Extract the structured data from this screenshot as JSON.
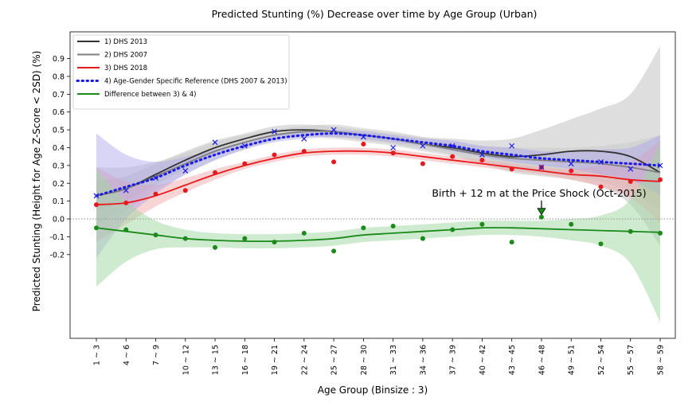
{
  "chart_data": {
    "type": "line",
    "title": "Predicted Stunting (%) Decrease over time by Age Group (Urban)",
    "xlabel": "Age Group (Binsize : 3)",
    "ylabel": "Predicted Stunting (Height for Age Z-Score < 2SD) (%)",
    "categories": [
      "1 ~ 3",
      "4 ~ 6",
      "7 ~ 9",
      "10 ~ 12",
      "13 ~ 15",
      "16 ~ 18",
      "19 ~ 21",
      "22 ~ 24",
      "25 ~ 27",
      "28 ~ 30",
      "31 ~ 33",
      "34 ~ 36",
      "37 ~ 39",
      "40 ~ 42",
      "43 ~ 45",
      "46 ~ 48",
      "49 ~ 51",
      "52 ~ 54",
      "55 ~ 57",
      "58 ~ 59"
    ],
    "yticks": [
      "-0.2",
      "-0.1",
      "0.0",
      "0.1",
      "0.2",
      "0.3",
      "0.4",
      "0.5",
      "0.6",
      "0.7",
      "0.8",
      "0.9"
    ],
    "ylim": [
      -0.67,
      1.05
    ],
    "series": [
      {
        "name": "1) DHS 2013",
        "color": "#333333",
        "style": "solid",
        "curve": [
          0.13,
          0.17,
          0.25,
          0.33,
          0.4,
          0.45,
          0.49,
          0.5,
          0.49,
          0.47,
          0.45,
          0.42,
          0.4,
          0.37,
          0.35,
          0.36,
          0.38,
          0.38,
          0.35,
          0.26
        ],
        "band_lo": [
          0.05,
          0.1,
          0.19,
          0.28,
          0.36,
          0.42,
          0.46,
          0.47,
          0.46,
          0.44,
          0.42,
          0.39,
          0.36,
          0.31,
          0.26,
          0.24,
          0.22,
          0.18,
          0.08,
          -0.15
        ],
        "band_hi": [
          0.21,
          0.24,
          0.31,
          0.38,
          0.44,
          0.48,
          0.52,
          0.53,
          0.52,
          0.5,
          0.48,
          0.46,
          0.45,
          0.44,
          0.45,
          0.5,
          0.56,
          0.62,
          0.7,
          0.97
        ]
      },
      {
        "name": "2) DHS 2007",
        "color": "#7f7f7f",
        "style": "solid",
        "curve": [
          0.13,
          0.17,
          0.24,
          0.31,
          0.38,
          0.43,
          0.47,
          0.49,
          0.49,
          0.47,
          0.45,
          0.42,
          0.39,
          0.36,
          0.34,
          0.33,
          0.32,
          0.31,
          0.29,
          0.26
        ],
        "band_lo": [
          -0.03,
          0.05,
          0.16,
          0.25,
          0.33,
          0.39,
          0.44,
          0.46,
          0.45,
          0.43,
          0.41,
          0.38,
          0.35,
          0.31,
          0.28,
          0.26,
          0.24,
          0.21,
          0.15,
          0.05
        ],
        "band_hi": [
          0.29,
          0.29,
          0.32,
          0.37,
          0.43,
          0.47,
          0.5,
          0.52,
          0.53,
          0.51,
          0.49,
          0.46,
          0.43,
          0.41,
          0.4,
          0.4,
          0.4,
          0.41,
          0.43,
          0.47
        ]
      },
      {
        "name": "3) DHS 2018",
        "color": "#e8191c",
        "style": "solid",
        "curve": [
          0.08,
          0.09,
          0.13,
          0.19,
          0.25,
          0.3,
          0.34,
          0.37,
          0.38,
          0.38,
          0.37,
          0.35,
          0.33,
          0.31,
          0.29,
          0.27,
          0.25,
          0.24,
          0.22,
          0.21
        ],
        "band_lo": [
          -0.13,
          -0.03,
          0.07,
          0.15,
          0.22,
          0.28,
          0.32,
          0.35,
          0.36,
          0.36,
          0.35,
          0.33,
          0.31,
          0.29,
          0.27,
          0.25,
          0.22,
          0.18,
          0.12,
          -0.02
        ],
        "band_hi": [
          0.29,
          0.21,
          0.19,
          0.23,
          0.28,
          0.32,
          0.36,
          0.39,
          0.4,
          0.4,
          0.39,
          0.37,
          0.35,
          0.33,
          0.31,
          0.29,
          0.28,
          0.3,
          0.32,
          0.44
        ],
        "points": [
          0.08,
          0.09,
          0.14,
          0.16,
          0.26,
          0.31,
          0.36,
          0.38,
          0.32,
          0.42,
          0.37,
          0.31,
          0.35,
          0.33,
          0.28,
          0.29,
          0.27,
          0.18,
          0.21,
          0.22
        ]
      },
      {
        "name": "4) Age-Gender Specific Reference (DHS 2007 & 2013)",
        "color": "#1a1ae6",
        "style": "dotted",
        "curve": [
          0.13,
          0.18,
          0.23,
          0.3,
          0.36,
          0.41,
          0.45,
          0.47,
          0.48,
          0.47,
          0.45,
          0.43,
          0.41,
          0.38,
          0.36,
          0.34,
          0.33,
          0.32,
          0.31,
          0.3
        ],
        "band_lo": [
          -0.22,
          0.0,
          0.14,
          0.25,
          0.33,
          0.39,
          0.43,
          0.45,
          0.46,
          0.45,
          0.43,
          0.41,
          0.38,
          0.35,
          0.32,
          0.3,
          0.28,
          0.25,
          0.22,
          0.13
        ],
        "band_hi": [
          0.48,
          0.36,
          0.32,
          0.35,
          0.39,
          0.43,
          0.47,
          0.49,
          0.5,
          0.49,
          0.47,
          0.45,
          0.44,
          0.41,
          0.4,
          0.38,
          0.38,
          0.39,
          0.4,
          0.47
        ],
        "points": [
          0.13,
          0.16,
          0.23,
          0.27,
          0.43,
          0.41,
          0.49,
          0.45,
          0.5,
          0.46,
          0.4,
          0.41,
          0.41,
          0.36,
          0.41,
          0.29,
          0.31,
          0.32,
          0.28,
          0.3
        ]
      },
      {
        "name": "Difference between 3) & 4)",
        "color": "#1a8a1a",
        "style": "solid",
        "curve": [
          -0.05,
          -0.07,
          -0.09,
          -0.11,
          -0.12,
          -0.125,
          -0.125,
          -0.12,
          -0.11,
          -0.09,
          -0.08,
          -0.07,
          -0.06,
          -0.05,
          -0.05,
          -0.055,
          -0.06,
          -0.065,
          -0.07,
          -0.075
        ],
        "band_lo": [
          -0.38,
          -0.24,
          -0.17,
          -0.16,
          -0.16,
          -0.165,
          -0.165,
          -0.16,
          -0.15,
          -0.13,
          -0.12,
          -0.11,
          -0.1,
          -0.09,
          -0.09,
          -0.1,
          -0.12,
          -0.15,
          -0.25,
          -0.58
        ],
        "band_hi": [
          0.28,
          0.1,
          -0.01,
          -0.06,
          -0.08,
          -0.085,
          -0.085,
          -0.08,
          -0.07,
          -0.05,
          -0.04,
          -0.03,
          -0.02,
          -0.01,
          -0.01,
          -0.01,
          0.0,
          0.02,
          0.11,
          0.43
        ],
        "points": [
          -0.05,
          -0.06,
          -0.09,
          -0.11,
          -0.16,
          -0.11,
          -0.13,
          -0.08,
          -0.18,
          -0.05,
          -0.04,
          -0.11,
          -0.06,
          -0.03,
          -0.13,
          0.01,
          -0.03,
          -0.14,
          -0.07,
          -0.08
        ]
      }
    ],
    "band_colors": [
      "#bdbdbd",
      "#c8c8c8",
      "#f4a9aa",
      "#a9a2ea",
      "#9fd79f"
    ],
    "reference_line": {
      "y": 0.0,
      "color": "#999999"
    },
    "annotation": {
      "text": "Birth + 12 m at the Price Shock (Oct-2015)",
      "category_index": 15,
      "y": 0.01,
      "arrow_color": "#1a8a1a"
    },
    "legend_position": "top-left",
    "grid": false
  }
}
